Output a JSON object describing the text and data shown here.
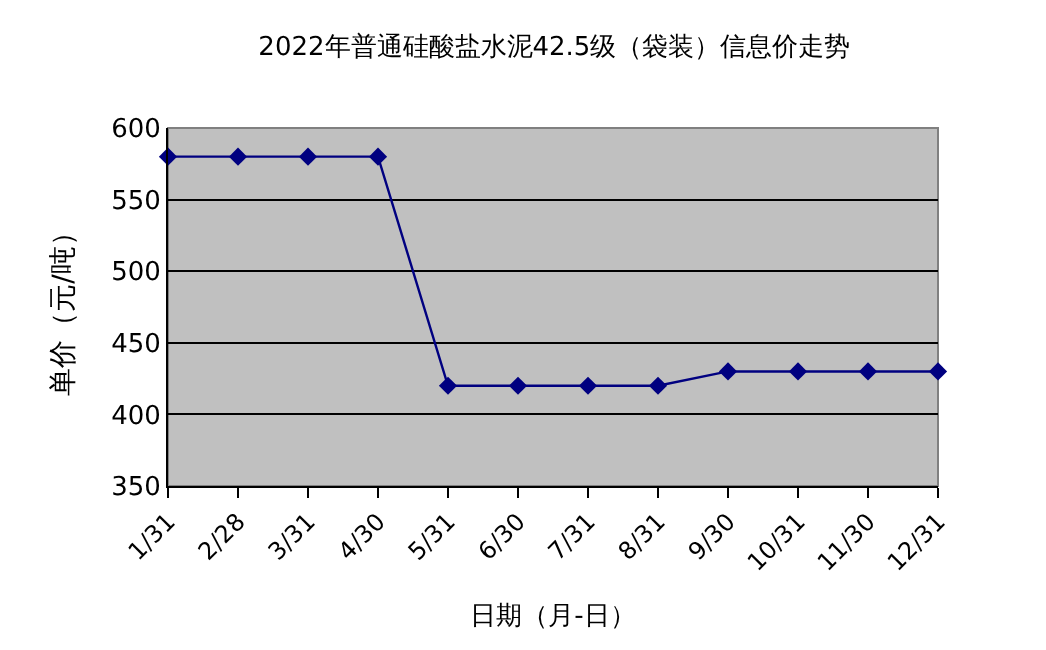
{
  "chart_data": {
    "type": "line",
    "title": "2022年普通硅酸盐水泥42.5级（袋装）信息价走势",
    "xlabel": "日期（月-日）",
    "ylabel": "单价（元/吨）",
    "categories": [
      "1/31",
      "2/28",
      "3/31",
      "4/30",
      "5/31",
      "6/30",
      "7/31",
      "8/31",
      "9/30",
      "10/31",
      "11/30",
      "12/31"
    ],
    "series": [
      {
        "color": "#000080",
        "values": [
          580,
          580,
          580,
          580,
          420,
          420,
          420,
          420,
          430,
          430,
          430,
          430
        ]
      }
    ],
    "ylim": [
      350,
      600
    ],
    "yticks": [
      350,
      400,
      450,
      500,
      550,
      600
    ],
    "grid": "y",
    "marker": "diamond",
    "line_style": "solid"
  }
}
